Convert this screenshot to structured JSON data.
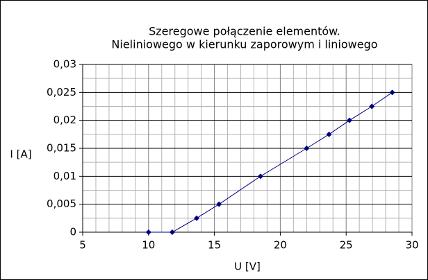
{
  "chart_data": {
    "type": "line",
    "title": [
      "Szeregowe połączenie elementów.",
      "Nieliniowego w kierunku zaporowym i liniowego"
    ],
    "x_label": "U [V]",
    "y_label": "I [A]",
    "x": [
      10,
      11.8,
      13.65,
      15.35,
      18.5,
      22,
      23.7,
      25.25,
      26.95,
      28.5
    ],
    "series": [
      {
        "color": "#000080",
        "values": [
          0,
          0,
          0.0025,
          0.005,
          0.01,
          0.015,
          0.0175,
          0.02,
          0.0225,
          0.025
        ]
      }
    ],
    "xlim": [
      5,
      30
    ],
    "xticks": [
      5,
      10,
      15,
      20,
      25,
      30
    ],
    "ylim": [
      0,
      0.03
    ],
    "yticks": [
      0,
      {
        "value": 0.005,
        "label": "0,005"
      },
      {
        "value": 0.01,
        "label": "0,01"
      },
      {
        "value": 0.015,
        "label": "0,015"
      },
      {
        "value": 0.02,
        "label": "0,02"
      },
      {
        "value": 0.025,
        "label": "0,025"
      },
      {
        "value": 0.03,
        "label": "0,03"
      }
    ],
    "grid": true,
    "minor_grid": true
  }
}
